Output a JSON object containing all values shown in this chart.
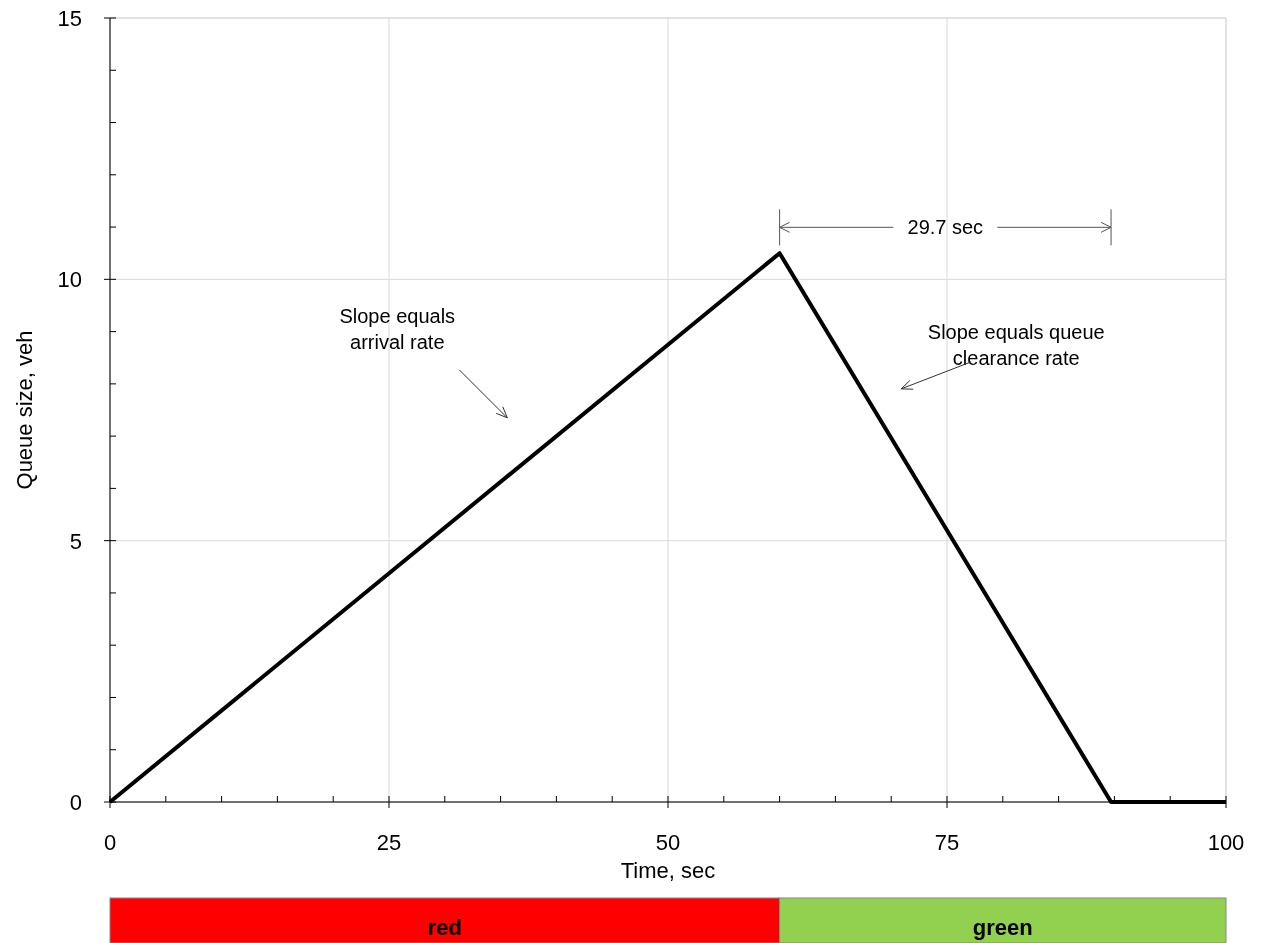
{
  "chart_data": [
    {
      "type": "line",
      "xlabel": "Time, sec",
      "ylabel": "Queue size, veh",
      "x": [
        0,
        60,
        89.7,
        100
      ],
      "series": [
        {
          "color": "#000000",
          "values": [
            0,
            10.5,
            0,
            0
          ]
        }
      ],
      "xlim": [
        0,
        100
      ],
      "ylim": [
        0,
        15
      ],
      "xticks": [
        0,
        {
          "value": 5,
          "label": null
        },
        {
          "value": 10,
          "label": null
        },
        {
          "value": 15,
          "label": null
        },
        {
          "value": 20,
          "label": null
        },
        25,
        {
          "value": 30,
          "label": null
        },
        {
          "value": 35,
          "label": null
        },
        {
          "value": 40,
          "label": null
        },
        {
          "value": 45,
          "label": null
        },
        50,
        {
          "value": 55,
          "label": null
        },
        {
          "value": 60,
          "label": null
        },
        {
          "value": 65,
          "label": null
        },
        {
          "value": 70,
          "label": null
        },
        75,
        {
          "value": 80,
          "label": null
        },
        {
          "value": 85,
          "label": null
        },
        {
          "value": 90,
          "label": null
        },
        {
          "value": 95,
          "label": null
        },
        100
      ],
      "yticks": [
        0,
        {
          "value": 1,
          "label": null
        },
        {
          "value": 2,
          "label": null
        },
        {
          "value": 3,
          "label": null
        },
        {
          "value": 4,
          "label": null
        },
        5,
        {
          "value": 6,
          "label": null
        },
        {
          "value": 7,
          "label": null
        },
        {
          "value": 8,
          "label": null
        },
        {
          "value": 9,
          "label": null
        },
        10,
        {
          "value": 11,
          "label": null
        },
        {
          "value": 12,
          "label": null
        },
        {
          "value": 13,
          "label": null
        },
        {
          "value": 14,
          "label": null
        },
        15
      ],
      "grid": true,
      "marker": "none",
      "line_style": "solid",
      "annotations": [
        "Slope equals\narrival rate",
        "Slope equals queue\nclearance rate",
        "29.7 sec"
      ]
    },
    {
      "type": "bar",
      "orientation": "horizontal",
      "stacked": true,
      "categories": [
        null
      ],
      "xlim": [
        0,
        100
      ],
      "tick_labels": false,
      "series": [
        {
          "name": "red",
          "color": "#ff0000",
          "values": [
            60
          ]
        },
        {
          "name": "green",
          "color": "#92d050",
          "values": [
            40
          ]
        }
      ]
    }
  ]
}
